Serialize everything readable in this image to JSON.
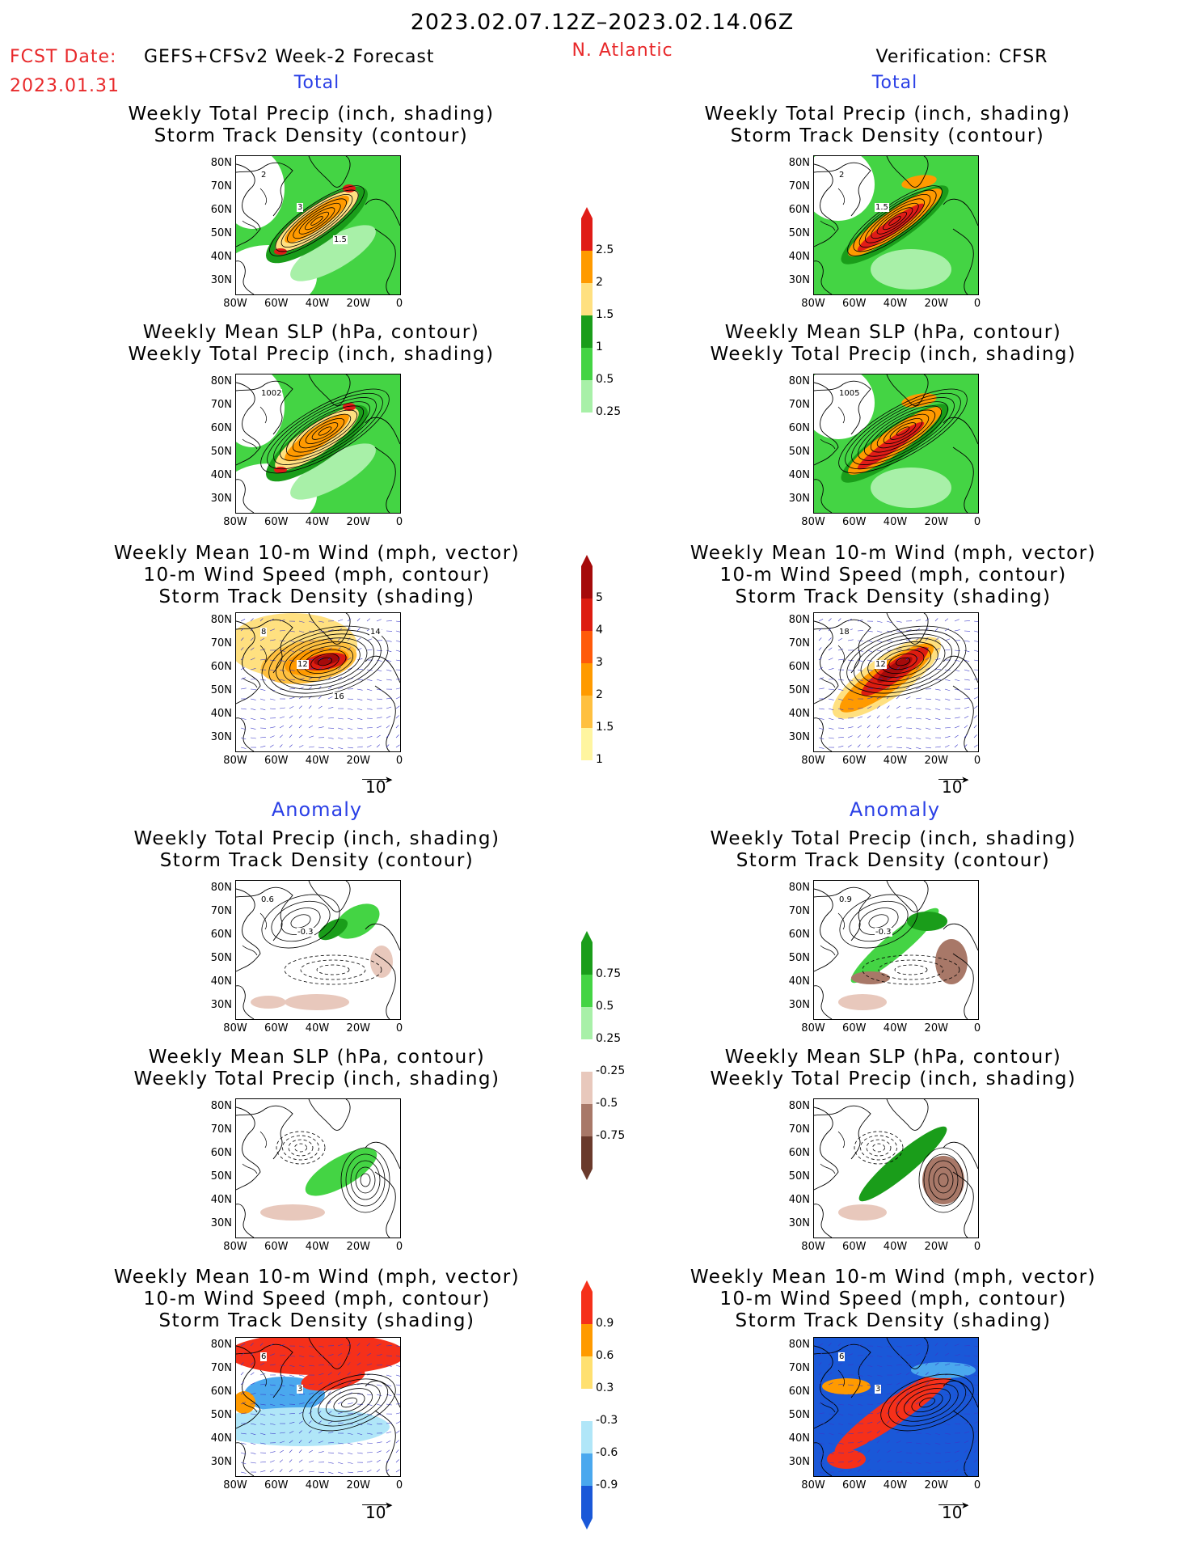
{
  "header": {
    "date_range": "2023.02.07.12Z–2023.02.14.06Z",
    "fcst_label": "FCST Date:",
    "fcst_model": "GEFS+CFSv2 Week-2 Forecast",
    "fcst_date": "2023.01.31",
    "region": "N. Atlantic",
    "verification": "Verification: CFSR"
  },
  "sections": {
    "total": "Total",
    "anomaly": "Anomaly"
  },
  "panel_titles": {
    "precip_track": [
      "Weekly Total Precip (inch, shading)",
      "Storm Track Density (contour)"
    ],
    "slp_precip": [
      "Weekly Mean SLP (hPa, contour)",
      "Weekly Total Precip (inch, shading)"
    ],
    "wind_track": [
      "Weekly Mean 10-m Wind (mph, vector)",
      "10-m Wind Speed (mph, contour)",
      "Storm Track Density (shading)"
    ]
  },
  "axes": {
    "lat_labels": [
      "80N",
      "70N",
      "60N",
      "50N",
      "40N",
      "30N"
    ],
    "lon_labels": [
      "80W",
      "60W",
      "40W",
      "20W",
      "0"
    ]
  },
  "vector_ref": "10",
  "contour_labels": {
    "fcst_precip": [
      "2",
      "3",
      "1.5"
    ],
    "cfsr_precip": [
      "2",
      "1.5"
    ],
    "fcst_slp": [
      "1002"
    ],
    "cfsr_slp": [
      "1005"
    ],
    "fcst_wind": [
      "8",
      "12",
      "16",
      "14"
    ],
    "cfsr_wind": [
      "18",
      "12"
    ],
    "fcst_anom_precip": [
      "0.6",
      "-0.3"
    ],
    "cfsr_anom_precip": [
      "0.9",
      "-0.3"
    ],
    "fcst_anom_wind": [
      "6",
      "3"
    ],
    "cfsr_anom_wind": [
      "6",
      "3"
    ]
  },
  "colorbars": {
    "precip_total": {
      "labels": [
        "2.5",
        "2",
        "1.5",
        "1",
        "0.5",
        "0.25"
      ],
      "colors": [
        "#e01c17",
        "#ff9a00",
        "#ffe080",
        "#1a9d1a",
        "#44d444",
        "#a8f0a8"
      ]
    },
    "track_total": {
      "labels": [
        "5",
        "4",
        "3",
        "2",
        "1.5",
        "1"
      ],
      "colors": [
        "#a50a0a",
        "#dd1c10",
        "#ff5a0a",
        "#ff9a00",
        "#ffc040",
        "#fff5a0"
      ]
    },
    "precip_anom": {
      "labels": [
        "0.75",
        "0.5",
        "0.25",
        "-0.25",
        "-0.5",
        "-0.75"
      ],
      "colors": [
        "#1a9d1a",
        "#44d444",
        "#a8f0a8",
        "#ffffff",
        "#e8c8bc",
        "#a87868",
        "#6a3a2c"
      ]
    },
    "track_anom": {
      "labels": [
        "0.9",
        "0.6",
        "0.3",
        "-0.3",
        "-0.6",
        "-0.9"
      ],
      "colors": [
        "#f5301a",
        "#ff9a00",
        "#ffe070",
        "#ffffff",
        "#b0e6f8",
        "#4aa8ee",
        "#1a58d8"
      ]
    }
  }
}
